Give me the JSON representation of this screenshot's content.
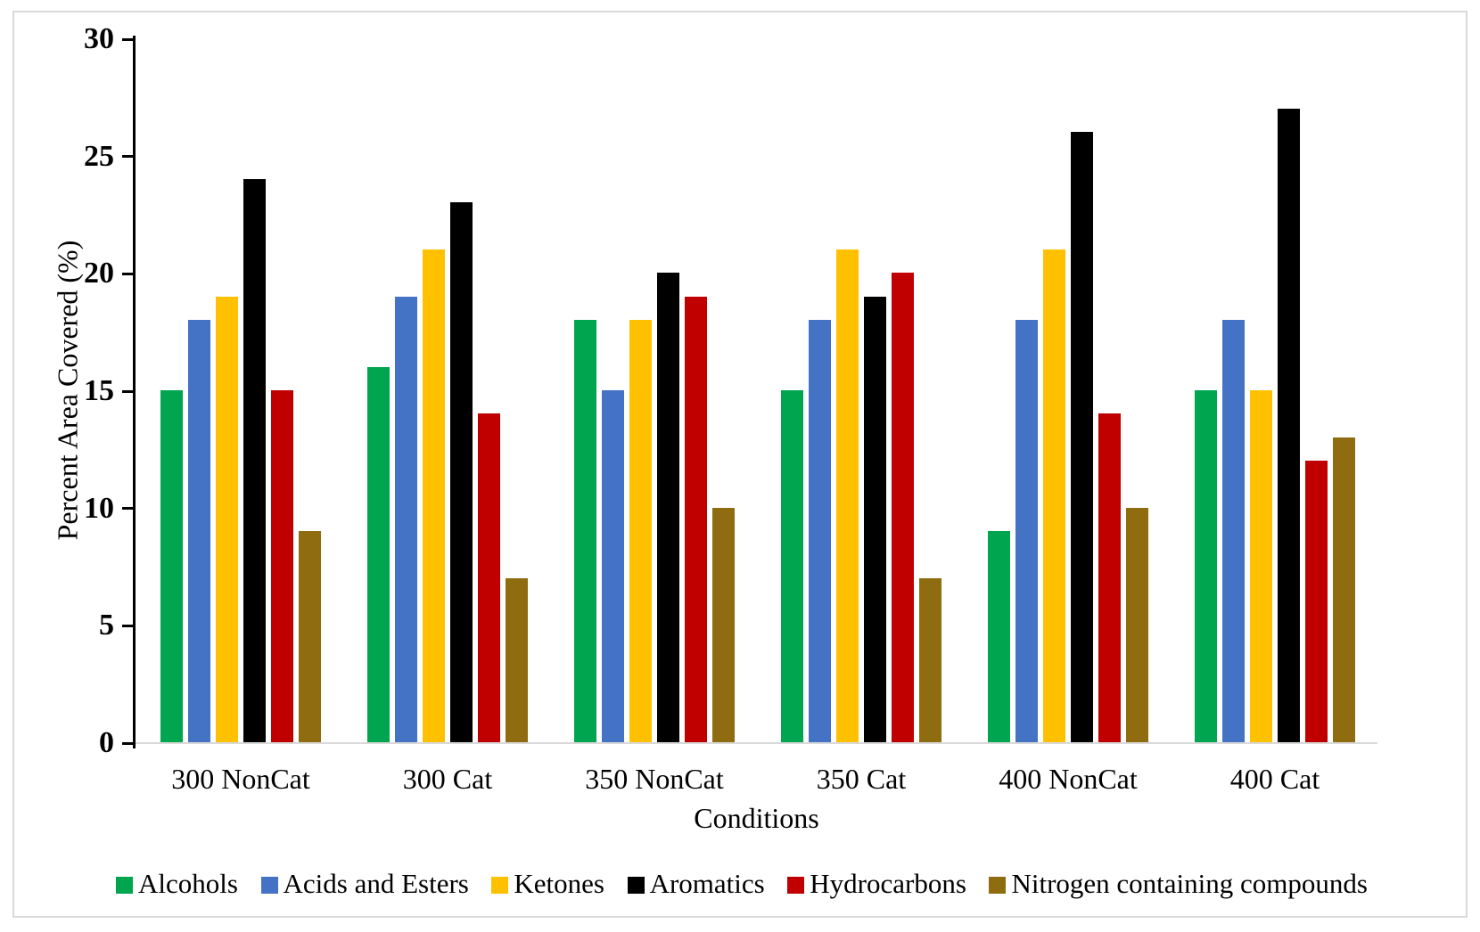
{
  "chart_data": {
    "type": "bar",
    "title": "",
    "xlabel": "Conditions",
    "ylabel": "Percent Area Covered (%)",
    "ylim": [
      0,
      30
    ],
    "yticks": [
      0,
      5,
      10,
      15,
      20,
      25,
      30
    ],
    "grid": false,
    "legend_position": "bottom",
    "categories": [
      "300 NonCat",
      "300 Cat",
      "350 NonCat",
      "350 Cat",
      "400 NonCat",
      "400 Cat"
    ],
    "series": [
      {
        "name": "Alcohols",
        "color": "#00A550",
        "values": [
          15,
          16,
          18,
          15,
          9,
          15
        ]
      },
      {
        "name": "Acids and Esters",
        "color": "#4472C4",
        "values": [
          18,
          19,
          15,
          18,
          18,
          18
        ]
      },
      {
        "name": "Ketones",
        "color": "#FFC000",
        "values": [
          19,
          21,
          18,
          21,
          21,
          15
        ]
      },
      {
        "name": "Aromatics",
        "color": "#000000",
        "values": [
          24,
          23,
          20,
          19,
          26,
          27
        ]
      },
      {
        "name": "Hydrocarbons",
        "color": "#C00000",
        "values": [
          15,
          14,
          19,
          20,
          14,
          12
        ]
      },
      {
        "name": "Nitrogen containing compounds",
        "color": "#8E6C0F",
        "values": [
          9,
          7,
          10,
          7,
          10,
          13
        ]
      }
    ]
  },
  "style_colors": {
    "axis": "#000000",
    "baseline": "#d9d9d9",
    "border": "#d9d9d9",
    "background": "#ffffff"
  }
}
